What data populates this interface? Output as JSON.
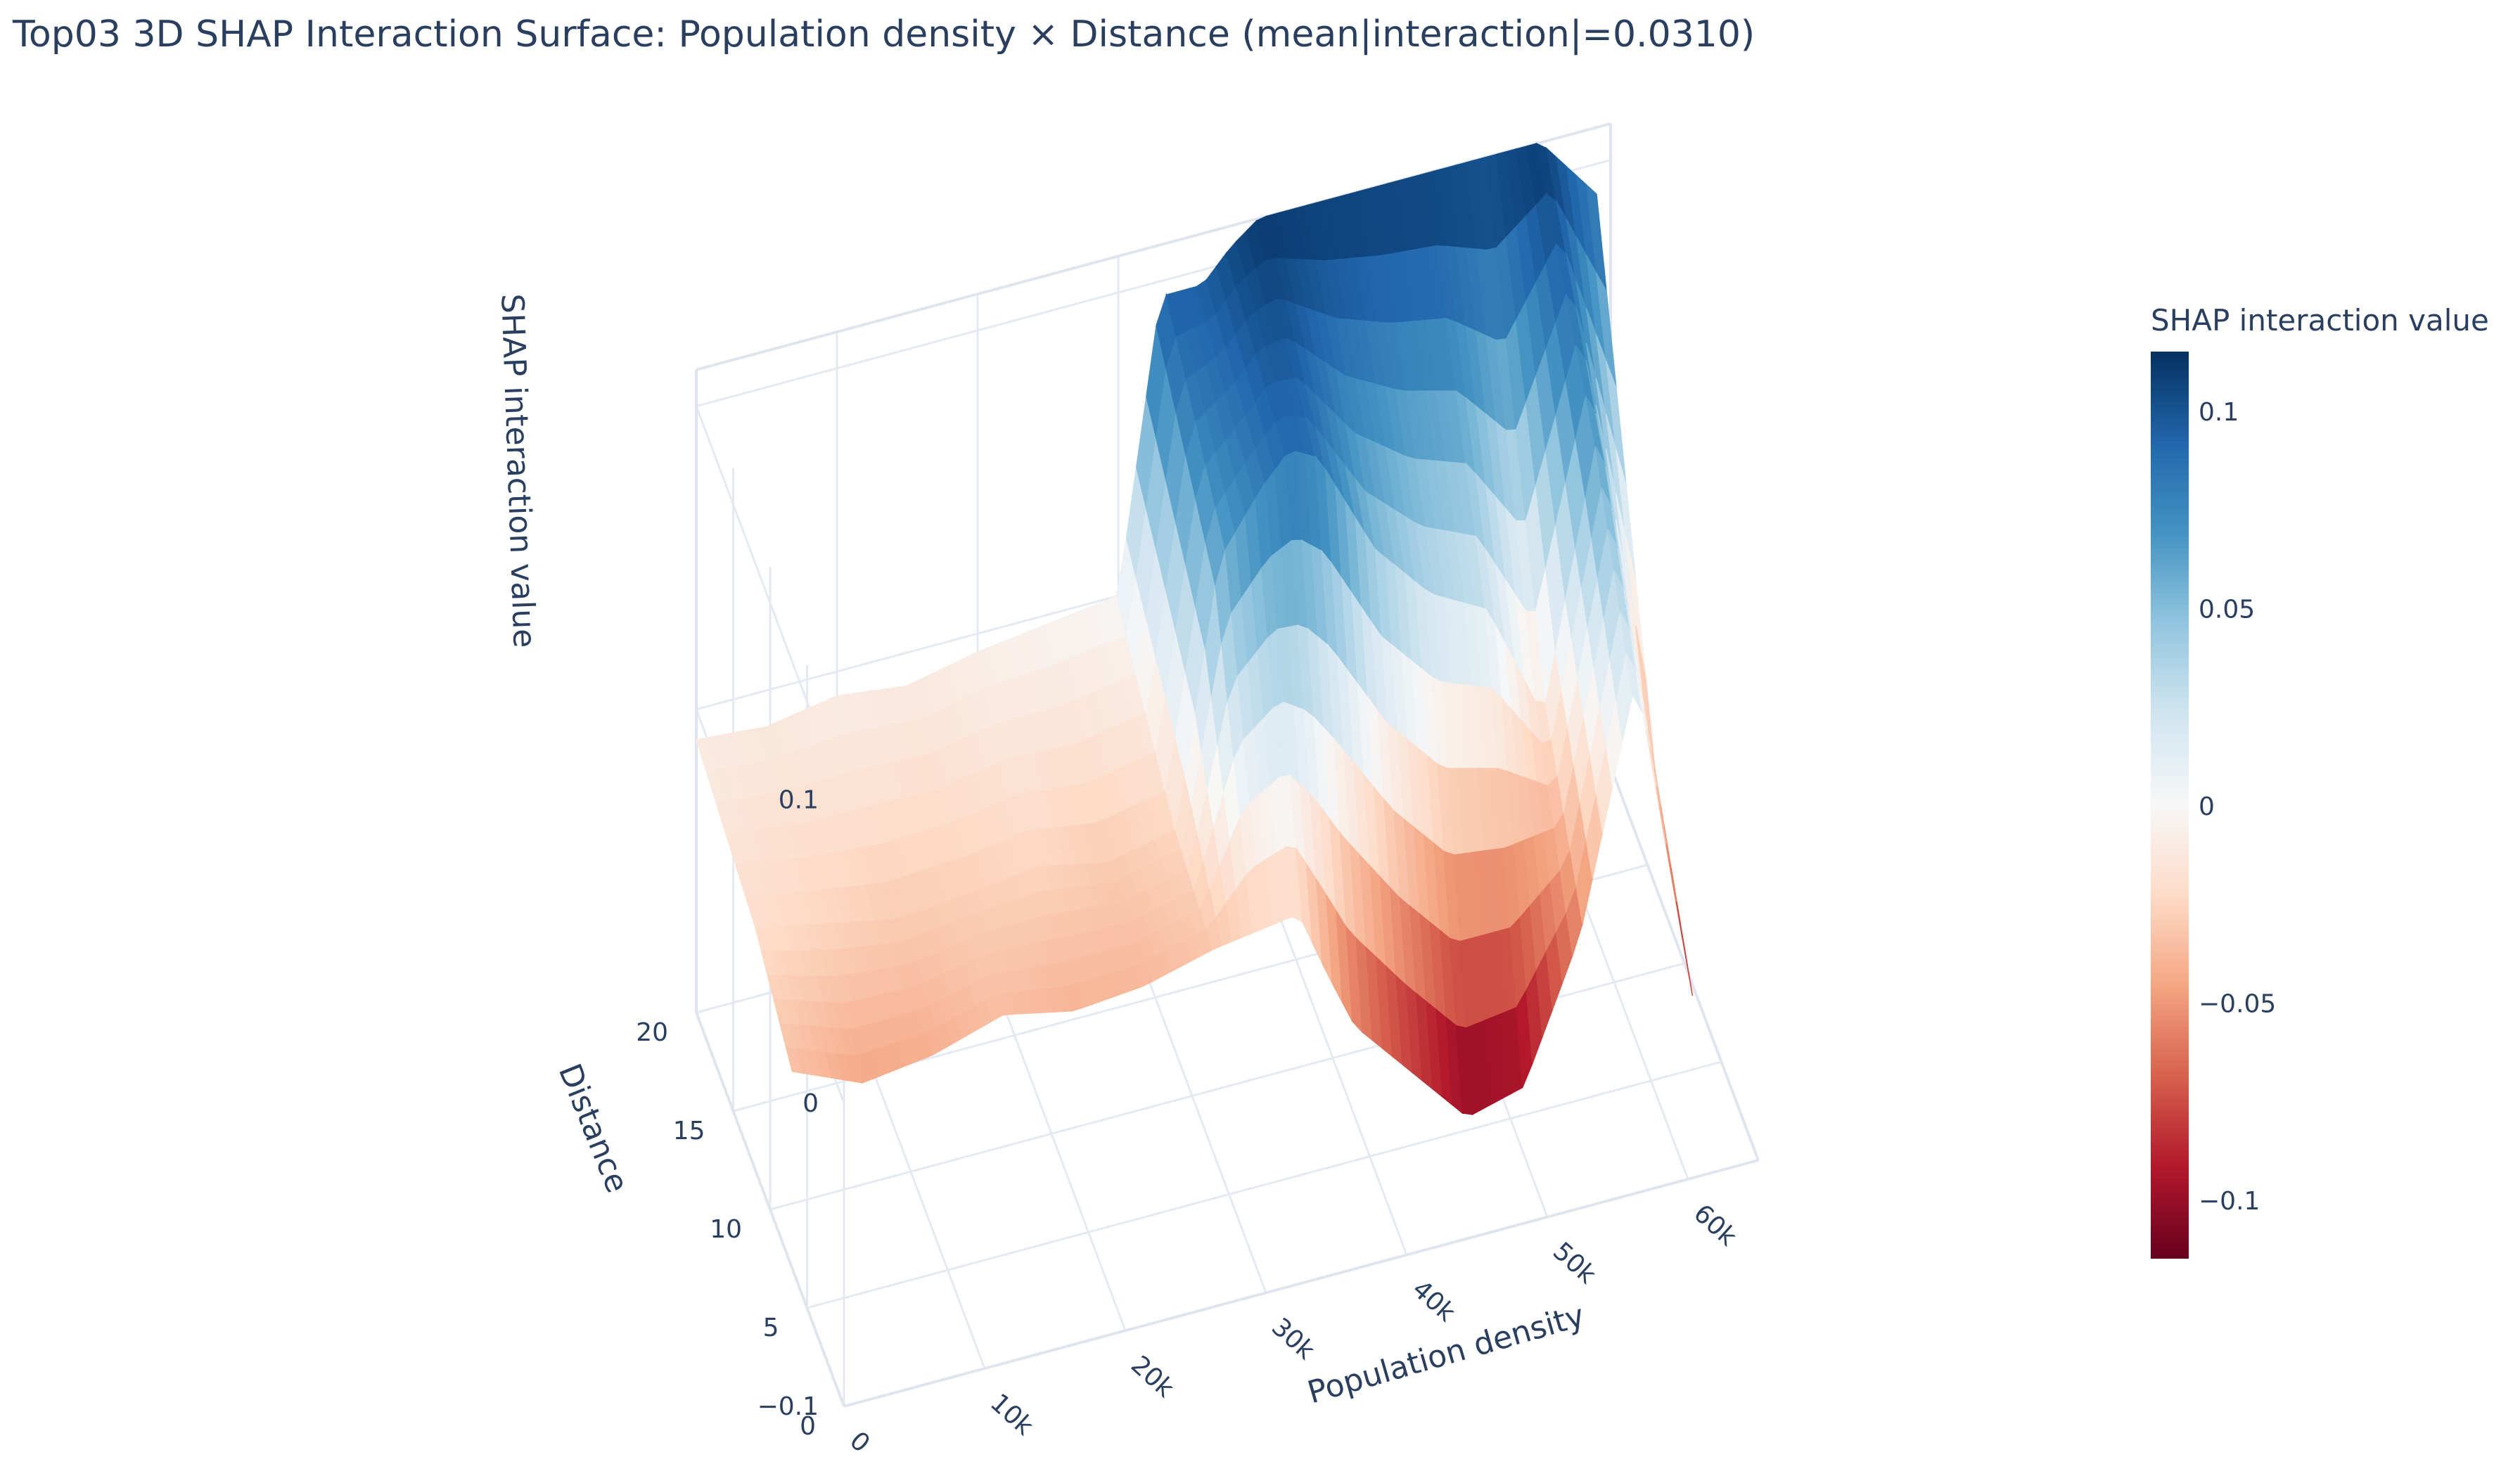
{
  "chart_data": {
    "type": "surface",
    "title": "Top03 3D SHAP Interaction Surface: Population density × Distance (mean|interaction|=0.0310)",
    "x_axis": {
      "label": "Population density",
      "range": [
        0,
        65000
      ],
      "ticks": [
        0,
        10000,
        20000,
        30000,
        40000,
        50000,
        60000
      ],
      "tick_labels": [
        "0",
        "10k",
        "20k",
        "30k",
        "40k",
        "50k",
        "60k"
      ]
    },
    "y_axis": {
      "label": "Distance",
      "range": [
        0,
        20
      ],
      "ticks": [
        0,
        5,
        10,
        15,
        20
      ],
      "tick_labels": [
        "0",
        "5",
        "10",
        "15",
        "20"
      ]
    },
    "z_axis": {
      "label": "SHAP interaction value",
      "range": [
        -0.1,
        0.1
      ],
      "ticks": [
        -0.1,
        0,
        0.1
      ],
      "tick_labels": [
        "−0.1",
        "0",
        "0.1"
      ]
    },
    "colorbar": {
      "title": "SHAP interaction value",
      "colorscale": "RdBu",
      "range": [
        -0.115,
        0.115
      ],
      "ticks": [
        -0.1,
        -0.05,
        0,
        0.05,
        0.1
      ],
      "tick_labels": [
        "−0.1",
        "−0.05",
        "0",
        "0.05",
        "0.1"
      ],
      "colors": [
        "#67001f",
        "#b2182b",
        "#d6604d",
        "#f4a582",
        "#fddbc7",
        "#f7f7f7",
        "#d1e5f0",
        "#92c5de",
        "#4393c3",
        "#2166ac",
        "#053061"
      ]
    },
    "grid": true,
    "surface_sample": {
      "distance_rows": [
        20,
        12,
        7
      ],
      "x": [
        0,
        5000,
        10000,
        15000,
        20000,
        25000,
        30000,
        33000,
        36000,
        38000,
        40000,
        44000,
        48000,
        52000,
        56000,
        60000,
        64000
      ],
      "z_rows": [
        [
          -0.01,
          -0.012,
          -0.008,
          -0.011,
          -0.006,
          -0.003,
          0.0,
          0.095,
          0.095,
          0.105,
          0.112,
          0.112,
          0.112,
          0.112,
          0.112,
          0.112,
          0.09
        ],
        [
          -0.02,
          -0.025,
          -0.03,
          -0.028,
          -0.025,
          -0.03,
          -0.025,
          0.06,
          0.08,
          0.09,
          0.085,
          0.05,
          0.03,
          0.02,
          -0.02,
          0.07,
          -0.05
        ],
        [
          -0.035,
          -0.045,
          -0.042,
          -0.035,
          -0.04,
          -0.038,
          -0.032,
          -0.03,
          -0.028,
          -0.05,
          -0.07,
          -0.09,
          -0.11,
          -0.105,
          -0.06,
          0.02,
          -0.09
        ]
      ]
    }
  }
}
